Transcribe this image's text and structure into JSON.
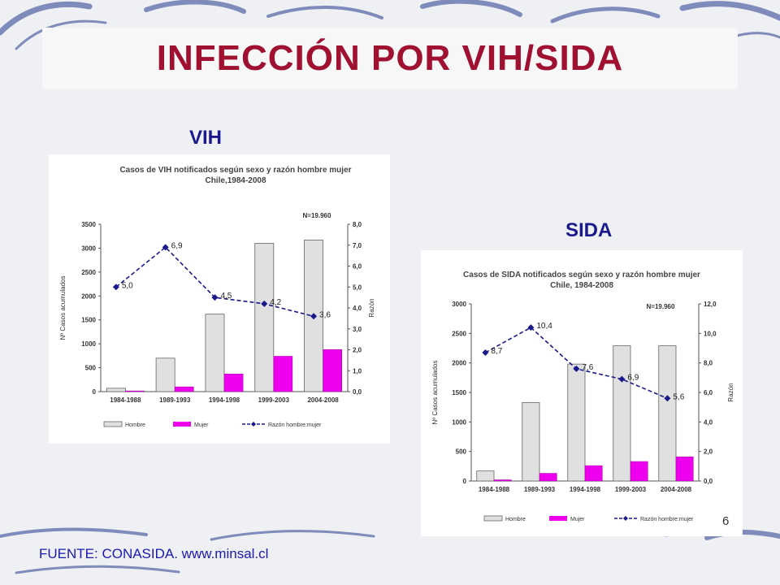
{
  "slide": {
    "title": "INFECCIÓN POR VIH/SIDA",
    "label_vih": "VIH",
    "label_sida": "SIDA",
    "source": "FUENTE: CONASIDA. www.minsal.cl",
    "page_number": "6"
  },
  "colors": {
    "title": "#a01030",
    "labels": "#1a1a8c",
    "hombre": "#e0e0e0",
    "mujer": "#ee00ee",
    "razon": "#1a1a8c"
  },
  "chart_data": [
    {
      "type": "bar",
      "title": "Casos de VIH notificados según sexo y razón hombre mujer",
      "subtitle": "Chile,1984-2008",
      "n_label": "N=19.960",
      "categories": [
        "1984-1988",
        "1989-1993",
        "1994-1998",
        "1999-2003",
        "2004-2008"
      ],
      "series": [
        {
          "name": "Hombre",
          "values": [
            70,
            700,
            1620,
            3100,
            3170
          ]
        },
        {
          "name": "Mujer",
          "values": [
            15,
            100,
            370,
            740,
            880
          ]
        }
      ],
      "line": {
        "name": "Razón hombre:mujer",
        "values": [
          5.0,
          6.9,
          4.5,
          4.2,
          3.6
        ],
        "labels": [
          "5,0",
          "6,9",
          "4,5",
          "4,2",
          "3,6"
        ]
      },
      "ylabel": "Nº Casos acumulados",
      "y2label": "Razón",
      "ylim": [
        0,
        3500
      ],
      "y2lim": [
        0,
        8
      ],
      "yticks": [
        "0",
        "500",
        "1000",
        "1500",
        "2000",
        "2500",
        "3000",
        "3500"
      ],
      "y2ticks": [
        "0,0",
        "1,0",
        "2,0",
        "3,0",
        "4,0",
        "5,0",
        "6,0",
        "7,0",
        "8,0"
      ],
      "legend": [
        "Hombre",
        "Mujer",
        "Razón hombre:mujer"
      ]
    },
    {
      "type": "bar",
      "title": "Casos de SIDA notificados según sexo y razón hombre mujer",
      "subtitle": "Chile, 1984-2008",
      "n_label": "N=19.960",
      "categories": [
        "1984-1988",
        "1989-1993",
        "1994-1998",
        "1999-2003",
        "2004-2008"
      ],
      "series": [
        {
          "name": "Hombre",
          "values": [
            170,
            1330,
            1980,
            2290,
            2290
          ]
        },
        {
          "name": "Mujer",
          "values": [
            20,
            130,
            260,
            330,
            410
          ]
        }
      ],
      "line": {
        "name": "Razón hombre:mujer",
        "values": [
          8.7,
          10.4,
          7.6,
          6.9,
          5.6
        ],
        "labels": [
          "8,7",
          "10,4",
          "7,6",
          "6,9",
          "5,6"
        ]
      },
      "ylabel": "Nº Casos acumulados",
      "y2label": "Razón",
      "ylim": [
        0,
        3000
      ],
      "y2lim": [
        0,
        12
      ],
      "yticks": [
        "0",
        "500",
        "1000",
        "1500",
        "2000",
        "2500",
        "3000"
      ],
      "y2ticks": [
        "0,0",
        "2,0",
        "4,0",
        "6,0",
        "8,0",
        "10,0",
        "12,0"
      ],
      "legend": [
        "Hombre",
        "Mujer",
        "Razón hombre:mujer"
      ]
    }
  ]
}
